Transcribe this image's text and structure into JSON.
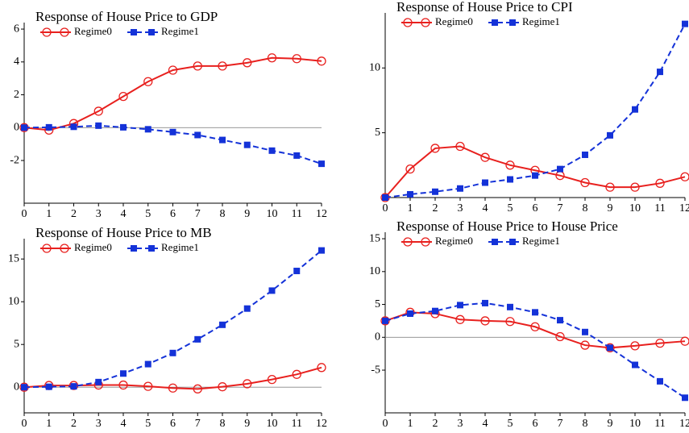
{
  "chart_data": [
    {
      "type": "line",
      "title": "Response of House Price to GDP",
      "x": [
        0,
        1,
        2,
        3,
        4,
        5,
        6,
        7,
        8,
        9,
        10,
        11,
        12
      ],
      "xlim": [
        0,
        12
      ],
      "xticks": [
        0,
        1,
        2,
        3,
        4,
        5,
        6,
        7,
        8,
        9,
        10,
        11,
        12
      ],
      "ylim": [
        -4.6,
        6.2
      ],
      "yticks": [
        -2,
        0,
        2,
        4,
        6
      ],
      "series": [
        {
          "name": "Regime0",
          "color": "#e8201e",
          "values": [
            0,
            -0.15,
            0.25,
            1.0,
            1.9,
            2.8,
            3.5,
            3.75,
            3.75,
            3.95,
            4.25,
            4.2,
            4.05
          ]
        },
        {
          "name": "Regime1",
          "color": "#1432d8",
          "values": [
            0,
            0.02,
            0.05,
            0.12,
            0.02,
            -0.1,
            -0.27,
            -0.45,
            -0.75,
            -1.05,
            -1.4,
            -1.7,
            -2.2
          ]
        }
      ]
    },
    {
      "type": "line",
      "title": "Response of House Price to CPI",
      "x": [
        0,
        1,
        2,
        3,
        4,
        5,
        6,
        7,
        8,
        9,
        10,
        11,
        12
      ],
      "xlim": [
        0,
        12
      ],
      "xticks": [
        0,
        1,
        2,
        3,
        4,
        5,
        6,
        7,
        8,
        9,
        10,
        11,
        12
      ],
      "ylim": [
        0,
        14
      ],
      "yticks": [
        5,
        10
      ],
      "series": [
        {
          "name": "Regime0",
          "color": "#e8201e",
          "values": [
            0,
            2.2,
            3.8,
            3.95,
            3.1,
            2.5,
            2.1,
            1.7,
            1.15,
            0.8,
            0.8,
            1.1,
            1.6
          ]
        },
        {
          "name": "Regime1",
          "color": "#1432d8",
          "values": [
            0,
            0.25,
            0.45,
            0.7,
            1.15,
            1.4,
            1.7,
            2.2,
            3.3,
            4.8,
            6.8,
            9.7,
            13.4
          ]
        }
      ]
    },
    {
      "type": "line",
      "title": "Response of House Price to MB",
      "x": [
        0,
        1,
        2,
        3,
        4,
        5,
        6,
        7,
        8,
        9,
        10,
        11,
        12
      ],
      "xlim": [
        0,
        12
      ],
      "xticks": [
        0,
        1,
        2,
        3,
        4,
        5,
        6,
        7,
        8,
        9,
        10,
        11,
        12
      ],
      "ylim": [
        -3,
        17
      ],
      "yticks": [
        0,
        5,
        10,
        15
      ],
      "series": [
        {
          "name": "Regime0",
          "color": "#e8201e",
          "values": [
            0,
            0.2,
            0.2,
            0.25,
            0.25,
            0.1,
            -0.1,
            -0.2,
            0.05,
            0.4,
            0.9,
            1.5,
            2.3
          ]
        },
        {
          "name": "Regime1",
          "color": "#1432d8",
          "values": [
            0,
            0.05,
            0.1,
            0.6,
            1.6,
            2.7,
            4.0,
            5.6,
            7.3,
            9.2,
            11.3,
            13.6,
            16.0
          ]
        }
      ]
    },
    {
      "type": "line",
      "title": "Response of House Price to House Price",
      "x": [
        0,
        1,
        2,
        3,
        4,
        5,
        6,
        7,
        8,
        9,
        10,
        11,
        12
      ],
      "xlim": [
        0,
        12
      ],
      "xticks": [
        0,
        1,
        2,
        3,
        4,
        5,
        6,
        7,
        8,
        9,
        10,
        11,
        12
      ],
      "ylim": [
        -11.5,
        15.5
      ],
      "yticks": [
        -5,
        0,
        5,
        10,
        15
      ],
      "series": [
        {
          "name": "Regime0",
          "color": "#e8201e",
          "values": [
            2.5,
            3.8,
            3.6,
            2.7,
            2.5,
            2.4,
            1.6,
            0.1,
            -1.2,
            -1.6,
            -1.3,
            -0.9,
            -0.6
          ]
        },
        {
          "name": "Regime1",
          "color": "#1432d8",
          "values": [
            2.5,
            3.6,
            4.0,
            4.9,
            5.2,
            4.6,
            3.8,
            2.6,
            0.8,
            -1.6,
            -4.2,
            -6.7,
            -9.2
          ]
        }
      ]
    }
  ]
}
